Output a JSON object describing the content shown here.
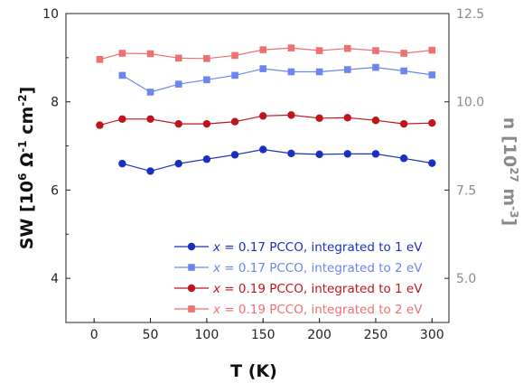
{
  "chart_data": {
    "type": "line",
    "xlabel": "T (K)",
    "ylabel": "SW [10⁶ Ω⁻¹ cm⁻²]",
    "ylabel_parts": {
      "prefix": "SW [10",
      "sup1": "6",
      "omega": " Ω",
      "sup2": "-1",
      "unit": " cm",
      "sup3": "-2",
      "suffix": "]"
    },
    "y2label": "n [10²⁷ m⁻³]",
    "y2label_parts": {
      "prefix": "n [10",
      "sup1": "27",
      "unit": " m",
      "sup2": "-3",
      "suffix": "]"
    },
    "xlim": [
      -25,
      315
    ],
    "ylim": [
      3.0,
      10.0
    ],
    "y2lim": [
      3.75,
      12.5
    ],
    "xticks": [
      0,
      50,
      100,
      150,
      200,
      250,
      300
    ],
    "yticks": [
      4,
      6,
      8,
      10
    ],
    "y2ticks": [
      "5.0",
      "7.5",
      "10.0",
      "12.5"
    ],
    "legend_position": "lower-right",
    "series": [
      {
        "name": "x = 0.17 PCCO, integrated to 1 eV",
        "legend": {
          "var": "x",
          "rest": " = 0.17 PCCO, integrated to 1 eV"
        },
        "color": "#1a2fbf",
        "marker": "circle",
        "x": [
          25,
          50,
          75,
          100,
          125,
          150,
          175,
          200,
          225,
          250,
          275,
          300
        ],
        "y": [
          6.6,
          6.43,
          6.6,
          6.7,
          6.8,
          6.92,
          6.83,
          6.81,
          6.82,
          6.82,
          6.72,
          6.61
        ]
      },
      {
        "name": "x = 0.17 PCCO, integrated to 2 eV",
        "legend": {
          "var": "x",
          "rest": " = 0.17 PCCO, integrated to 2 eV"
        },
        "color": "#6b86ee",
        "marker": "square",
        "x": [
          25,
          50,
          75,
          100,
          125,
          150,
          175,
          200,
          225,
          250,
          275,
          300
        ],
        "y": [
          8.6,
          8.22,
          8.4,
          8.5,
          8.6,
          8.75,
          8.68,
          8.68,
          8.73,
          8.78,
          8.7,
          8.61
        ]
      },
      {
        "name": "x = 0.19 PCCO, integrated to 1 eV",
        "legend": {
          "var": "x",
          "rest": " = 0.19 PCCO, integrated to 1 eV"
        },
        "color": "#c0141b",
        "marker": "circle",
        "x": [
          5,
          25,
          50,
          75,
          100,
          125,
          150,
          175,
          200,
          225,
          250,
          275,
          300
        ],
        "y": [
          7.47,
          7.61,
          7.61,
          7.5,
          7.5,
          7.55,
          7.68,
          7.7,
          7.63,
          7.64,
          7.58,
          7.5,
          7.52
        ]
      },
      {
        "name": "x = 0.19 PCCO, integrated to 2 eV",
        "legend": {
          "var": "x",
          "rest": " = 0.19 PCCO, integrated to 2 eV"
        },
        "color": "#ee7070",
        "marker": "square",
        "x": [
          5,
          25,
          50,
          75,
          100,
          125,
          150,
          175,
          200,
          225,
          250,
          275,
          300
        ],
        "y": [
          8.96,
          9.1,
          9.09,
          8.99,
          8.98,
          9.05,
          9.18,
          9.22,
          9.16,
          9.21,
          9.16,
          9.1,
          9.17
        ]
      }
    ]
  }
}
